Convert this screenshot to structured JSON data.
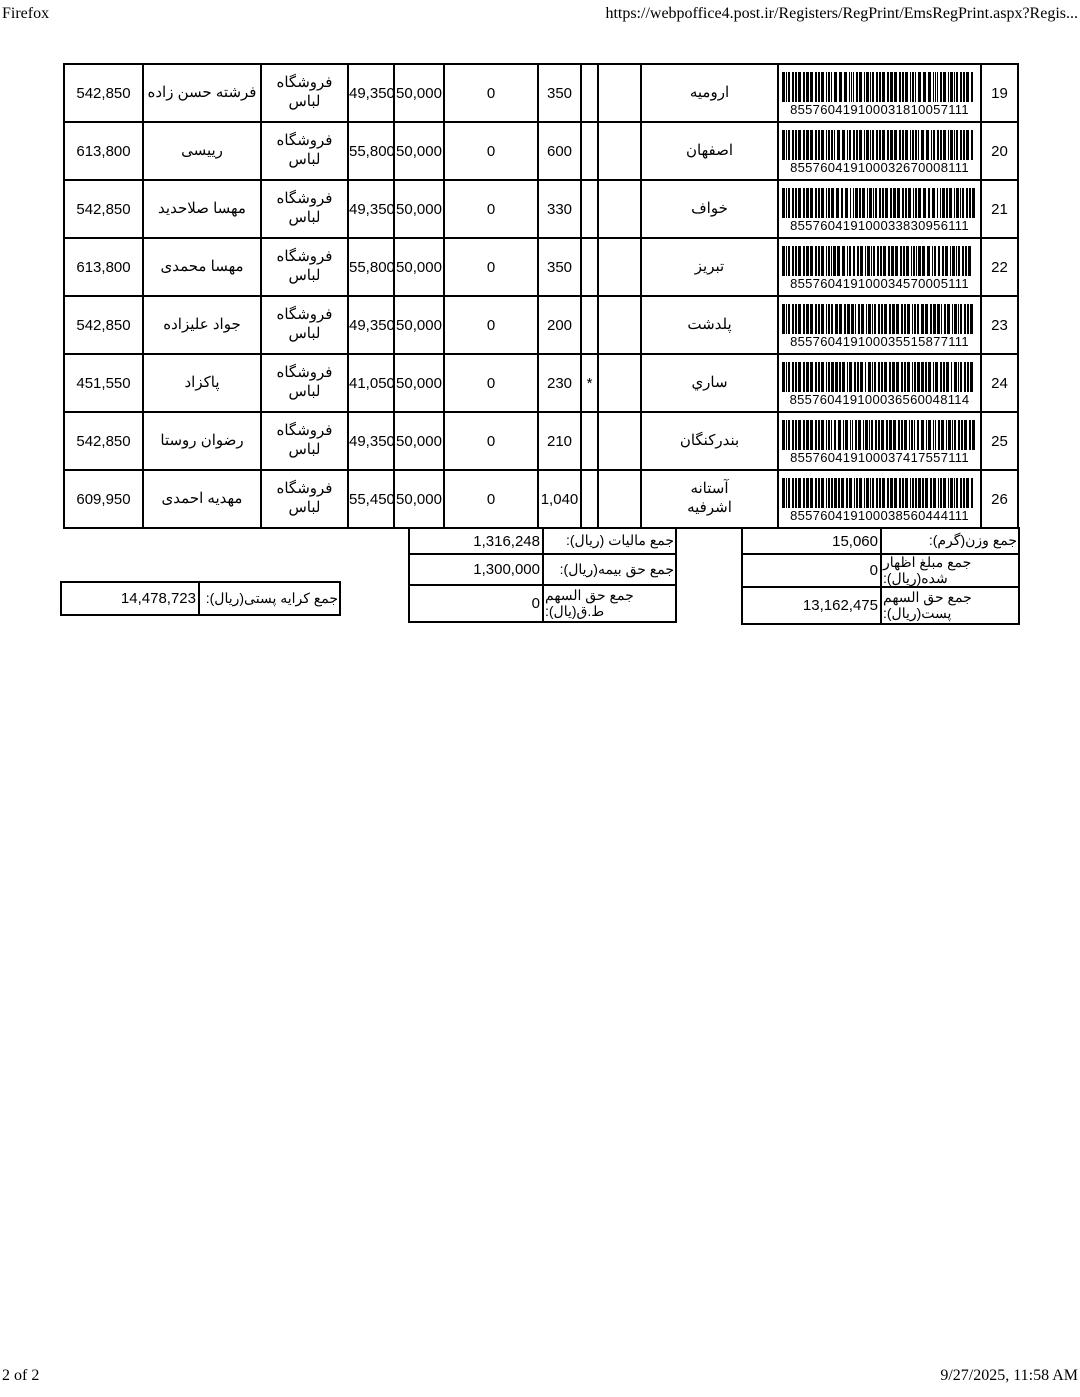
{
  "header": {
    "browser": "Firefox",
    "url": "https://webpoffice4.post.ir/Registers/RegPrint/EmsRegPrint.aspx?Regis..."
  },
  "footer": {
    "page_indicator": "2 of 2",
    "datetime": "9/27/2025, 11:58 AM"
  },
  "table": {
    "rows": [
      {
        "num": "19",
        "barcode": "855760419100031810057111",
        "city": "ارومیه",
        "star": "",
        "weight": "350",
        "declared": "0",
        "insurance": "50,000",
        "fee": "49,350",
        "store": "فروشگاه\nلباس",
        "name": "فرشته حسن زاده",
        "amount": "542,850"
      },
      {
        "num": "20",
        "barcode": "855760419100032670008111",
        "city": "اصفهان",
        "star": "",
        "weight": "600",
        "declared": "0",
        "insurance": "50,000",
        "fee": "55,800",
        "store": "فروشگاه\nلباس",
        "name": "رییسی",
        "amount": "613,800"
      },
      {
        "num": "21",
        "barcode": "855760419100033830956111",
        "city": "خواف",
        "star": "",
        "weight": "330",
        "declared": "0",
        "insurance": "50,000",
        "fee": "49,350",
        "store": "فروشگاه\nلباس",
        "name": "مهسا صلاحدید",
        "amount": "542,850"
      },
      {
        "num": "22",
        "barcode": "855760419100034570005111",
        "city": "تبریز",
        "star": "",
        "weight": "350",
        "declared": "0",
        "insurance": "50,000",
        "fee": "55,800",
        "store": "فروشگاه\nلباس",
        "name": "مهسا محمدی",
        "amount": "613,800"
      },
      {
        "num": "23",
        "barcode": "855760419100035515877111",
        "city": "پلدشت",
        "star": "",
        "weight": "200",
        "declared": "0",
        "insurance": "50,000",
        "fee": "49,350",
        "store": "فروشگاه\nلباس",
        "name": "جواد علیزاده",
        "amount": "542,850"
      },
      {
        "num": "24",
        "barcode": "855760419100036560048114",
        "city": "ساري",
        "star": "*",
        "weight": "230",
        "declared": "0",
        "insurance": "50,000",
        "fee": "41,050",
        "store": "فروشگاه\nلباس",
        "name": "پاکزاد",
        "amount": "451,550"
      },
      {
        "num": "25",
        "barcode": "855760419100037417557111",
        "city": "بندرکنگان",
        "star": "",
        "weight": "210",
        "declared": "0",
        "insurance": "50,000",
        "fee": "49,350",
        "store": "فروشگاه\nلباس",
        "name": "رضوان روستا",
        "amount": "542,850"
      },
      {
        "num": "26",
        "barcode": "855760419100038560444111",
        "city": "آستانه\nاشرفیه",
        "star": "",
        "weight": "1,040",
        "declared": "0",
        "insurance": "50,000",
        "fee": "55,450",
        "store": "فروشگاه\nلباس",
        "name": "مهدیه احمدی",
        "amount": "609,950"
      }
    ]
  },
  "totals": {
    "weight": {
      "label": "جمع وزن(گرم):",
      "value": "15,060"
    },
    "declared": {
      "label": "جمع مبلغ اظهار\nشده(ریال):",
      "value": "0"
    },
    "post_share": {
      "label": "جمع حق السهم\nپست(ریال):",
      "value": "13,162,475"
    },
    "tax": {
      "label": "جمع مالیات (ریال):",
      "value": "1,316,248"
    },
    "insurance": {
      "label": "جمع حق بیمه(ریال):",
      "value": "1,300,000"
    },
    "tgh_share": {
      "label": "جمع حق السهم\nط.ق(يال):",
      "value": "0"
    },
    "postage": {
      "label": "جمع کرایه پستی(ریال):",
      "value": "14,478,723"
    }
  }
}
